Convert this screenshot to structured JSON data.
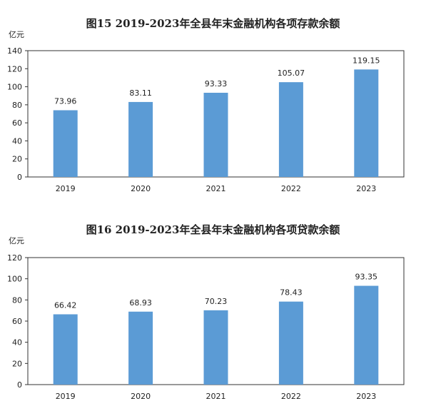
{
  "chart_data": [
    {
      "type": "bar",
      "title": "图15   2019-2023年全县年末金融机构各项存款余额",
      "ylabel": "亿元",
      "xlabel": "",
      "categories": [
        "2019",
        "2020",
        "2021",
        "2022",
        "2023"
      ],
      "values": [
        73.96,
        83.11,
        93.33,
        105.07,
        119.15
      ],
      "value_labels": [
        "73.96",
        "83.11",
        "93.33",
        "105.07",
        "119.15"
      ],
      "ylim": [
        0,
        140
      ],
      "yticks": [
        0,
        20,
        40,
        60,
        80,
        100,
        120,
        140
      ],
      "bar_color": "#5b9bd5",
      "grid": false,
      "legend": "none"
    },
    {
      "type": "bar",
      "title": "图16   2019-2023年全县年末金融机构各项贷款余额",
      "ylabel": "亿元",
      "xlabel": "",
      "categories": [
        "2019",
        "2020",
        "2021",
        "2022",
        "2023"
      ],
      "values": [
        66.42,
        68.93,
        70.23,
        78.43,
        93.35
      ],
      "value_labels": [
        "66.42",
        "68.93",
        "70.23",
        "78.43",
        "93.35"
      ],
      "ylim": [
        0,
        120
      ],
      "yticks": [
        0,
        20,
        40,
        60,
        80,
        100,
        120
      ],
      "bar_color": "#5b9bd5",
      "grid": false,
      "legend": "none"
    }
  ]
}
